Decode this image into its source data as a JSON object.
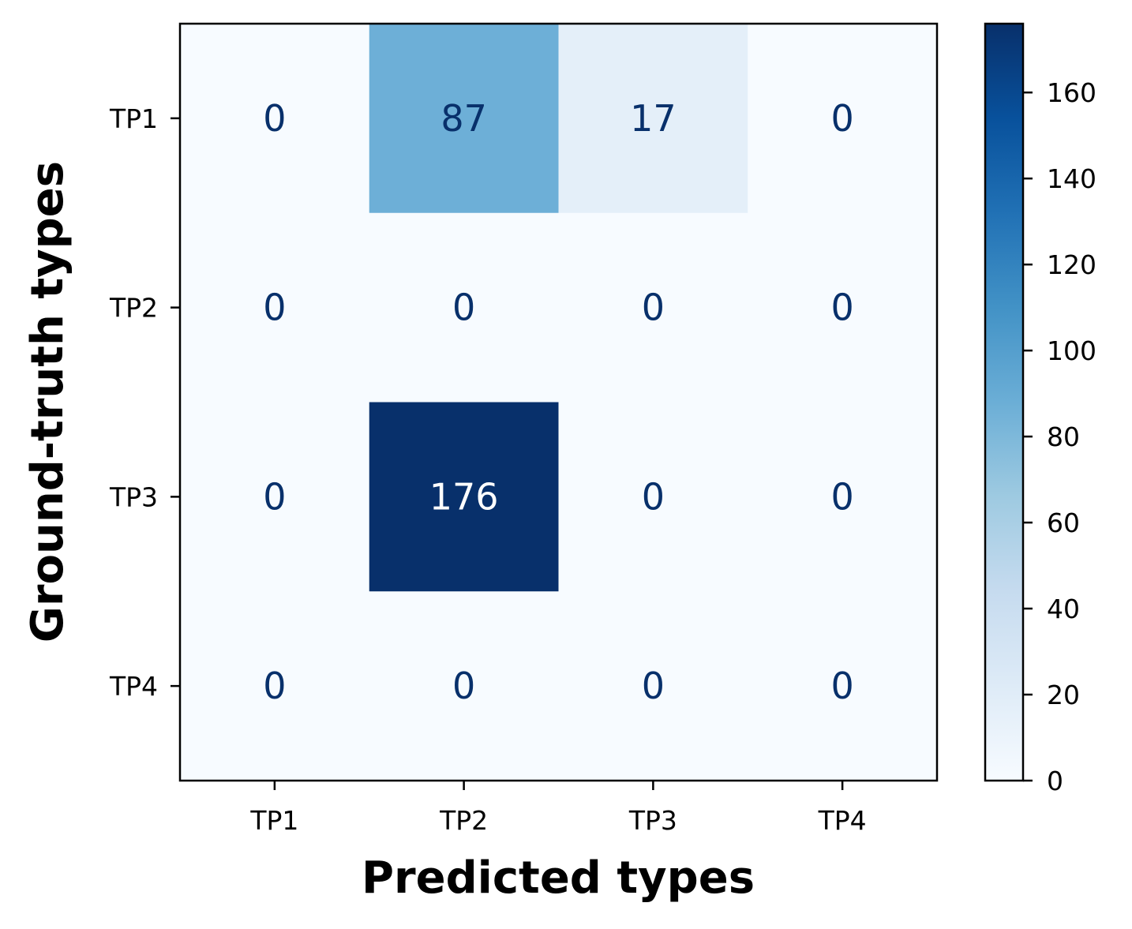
{
  "chart_data": {
    "type": "heatmap",
    "title": "",
    "xlabel": "Predicted types",
    "ylabel": "Ground-truth types",
    "x_categories": [
      "TP1",
      "TP2",
      "TP3",
      "TP4"
    ],
    "y_categories": [
      "TP1",
      "TP2",
      "TP3",
      "TP4"
    ],
    "matrix": [
      [
        0,
        87,
        17,
        0
      ],
      [
        0,
        0,
        0,
        0
      ],
      [
        0,
        176,
        0,
        0
      ],
      [
        0,
        0,
        0,
        0
      ]
    ],
    "colormap": "Blues",
    "colorbar": {
      "min": 0,
      "max": 176,
      "ticks": [
        0,
        20,
        40,
        60,
        80,
        100,
        120,
        140,
        160
      ]
    },
    "text_color_dark": "#08306b",
    "text_color_light": "#ffffff",
    "grid": false
  }
}
